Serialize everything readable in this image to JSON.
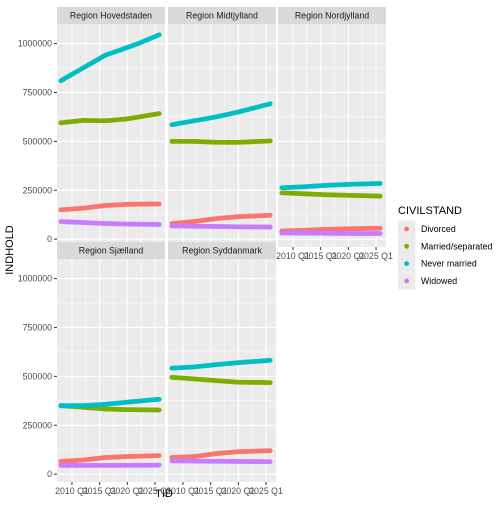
{
  "chart_data": {
    "type": "scatter",
    "xlabel": "TID",
    "ylabel": "INDHOLD",
    "x_tick_labels": [
      "2010 Q1",
      "2015 Q1",
      "2020 Q1",
      "2025 Q1"
    ],
    "x_ticks": [
      2010,
      2015,
      2020,
      2025
    ],
    "xlim": [
      2007.3,
      2026.8
    ],
    "y_tick_labels": [
      "0",
      "250000",
      "500000",
      "750000",
      "1000000"
    ],
    "y_ticks": [
      0,
      250000,
      500000,
      750000,
      1000000
    ],
    "ylim": [
      -40000,
      1100000
    ],
    "legend": {
      "title": "CIVILSTAND",
      "position": "right",
      "entries": [
        "Divorced",
        "Married/separated",
        "Never married",
        "Widowed"
      ]
    },
    "colors": {
      "Divorced": "#F8766D",
      "Married/separated": "#7CAE00",
      "Never married": "#00BFC4",
      "Widowed": "#C77CFF"
    },
    "x_range": [
      2008.0,
      2025.75
    ],
    "panels": [
      {
        "name": "Region Hovedstaden",
        "series": [
          {
            "name": "Divorced",
            "x": [
              2008,
              2012,
              2016,
              2020,
              2025.75
            ],
            "y": [
              150000,
              158000,
              172000,
              178000,
              180000
            ]
          },
          {
            "name": "Married/separated",
            "x": [
              2008,
              2012,
              2016,
              2020,
              2025.75
            ],
            "y": [
              595000,
              607000,
              605000,
              615000,
              642000
            ]
          },
          {
            "name": "Never married",
            "x": [
              2008,
              2012,
              2016,
              2020,
              2022,
              2025.75
            ],
            "y": [
              810000,
              875000,
              940000,
              980000,
              1000000,
              1045000
            ]
          },
          {
            "name": "Widowed",
            "x": [
              2008,
              2012,
              2016,
              2020,
              2025.75
            ],
            "y": [
              90000,
              85000,
              80000,
              77000,
              75000
            ]
          }
        ]
      },
      {
        "name": "Region Midtjylland",
        "series": [
          {
            "name": "Divorced",
            "x": [
              2008,
              2012,
              2016,
              2020,
              2025.75
            ],
            "y": [
              80000,
              90000,
              105000,
              115000,
              122000
            ]
          },
          {
            "name": "Married/separated",
            "x": [
              2008,
              2012,
              2016,
              2020,
              2025.75
            ],
            "y": [
              500000,
              500000,
              495000,
              495000,
              502000
            ]
          },
          {
            "name": "Never married",
            "x": [
              2008,
              2012,
              2016,
              2020,
              2025.75
            ],
            "y": [
              585000,
              605000,
              625000,
              650000,
              692000
            ]
          },
          {
            "name": "Widowed",
            "x": [
              2008,
              2012,
              2016,
              2020,
              2025.75
            ],
            "y": [
              68000,
              66000,
              65000,
              63000,
              62000
            ]
          }
        ]
      },
      {
        "name": "Region Nordjylland",
        "series": [
          {
            "name": "Divorced",
            "x": [
              2008,
              2012,
              2016,
              2020,
              2025.75
            ],
            "y": [
              42000,
              45000,
              50000,
              53000,
              56000
            ]
          },
          {
            "name": "Married/separated",
            "x": [
              2008,
              2012,
              2016,
              2020,
              2025.75
            ],
            "y": [
              237000,
              232000,
              227000,
              224000,
              220000
            ]
          },
          {
            "name": "Never married",
            "x": [
              2008,
              2012,
              2016,
              2020,
              2025.75
            ],
            "y": [
              263000,
              268000,
              275000,
              280000,
              285000
            ]
          },
          {
            "name": "Widowed",
            "x": [
              2008,
              2012,
              2016,
              2020,
              2025.75
            ],
            "y": [
              32000,
              31000,
              30000,
              29000,
              29000
            ]
          }
        ]
      },
      {
        "name": "Region Sjælland",
        "series": [
          {
            "name": "Divorced",
            "x": [
              2008,
              2012,
              2016,
              2020,
              2025.75
            ],
            "y": [
              65000,
              72000,
              85000,
              90000,
              95000
            ]
          },
          {
            "name": "Married/separated",
            "x": [
              2008,
              2012,
              2016,
              2020,
              2025.75
            ],
            "y": [
              350000,
              342000,
              333000,
              330000,
              328000
            ]
          },
          {
            "name": "Never married",
            "x": [
              2008,
              2012,
              2016,
              2020,
              2025.75
            ],
            "y": [
              350000,
              350000,
              357000,
              368000,
              383000
            ]
          },
          {
            "name": "Widowed",
            "x": [
              2008,
              2012,
              2016,
              2020,
              2025.75
            ],
            "y": [
              45000,
              45000,
              45000,
              45000,
              46000
            ]
          }
        ]
      },
      {
        "name": "Region Syddanmark",
        "series": [
          {
            "name": "Divorced",
            "x": [
              2008,
              2012,
              2016,
              2020,
              2025.75
            ],
            "y": [
              85000,
              90000,
              105000,
              115000,
              120000
            ]
          },
          {
            "name": "Married/separated",
            "x": [
              2008,
              2012,
              2016,
              2020,
              2025.75
            ],
            "y": [
              495000,
              487000,
              478000,
              470000,
              468000
            ]
          },
          {
            "name": "Never married",
            "x": [
              2008,
              2012,
              2016,
              2020,
              2025.75
            ],
            "y": [
              542000,
              548000,
              560000,
              570000,
              582000
            ]
          },
          {
            "name": "Widowed",
            "x": [
              2008,
              2012,
              2016,
              2020,
              2025.75
            ],
            "y": [
              68000,
              67000,
              66000,
              65000,
              64000
            ]
          }
        ]
      }
    ]
  }
}
